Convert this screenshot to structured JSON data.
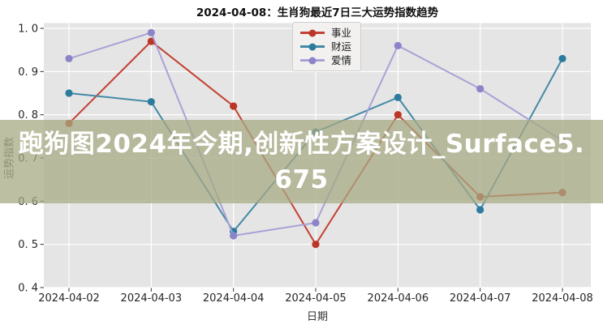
{
  "chart_data": {
    "type": "line",
    "title": "2024-04-08：生肖狗最近7日三大运势指数趋势",
    "xlabel": "日期",
    "ylabel": "运势指数",
    "categories": [
      "2024-04-02",
      "2024-04-03",
      "2024-04-04",
      "2024-04-05",
      "2024-04-06",
      "2024-04-07",
      "2024-04-08"
    ],
    "ylim": [
      0.4,
      1.0
    ],
    "ytick_values": [
      0.4,
      0.5,
      0.6,
      0.7,
      0.8,
      0.9,
      1.0
    ],
    "ytick_labels": [
      "0. 4",
      "0. 5",
      "0. 6",
      "0. 7",
      "0. 8",
      "0. 9",
      "1. 0"
    ],
    "grid": true,
    "plot_bg_color": "#e5e5e5",
    "grid_color": "#ffffff",
    "tick_color": "#333333",
    "legend_position": "upper center",
    "series": [
      {
        "name": "事业",
        "slug": "career",
        "line_color": "#c44133",
        "marker_color": "#bc3627",
        "values": [
          0.78,
          0.97,
          0.82,
          0.5,
          0.8,
          0.61,
          0.62
        ]
      },
      {
        "name": "财运",
        "slug": "wealth",
        "line_color": "#4489a6",
        "marker_color": "#2d7b9e",
        "values": [
          0.85,
          0.83,
          0.53,
          0.76,
          0.84,
          0.58,
          0.93
        ]
      },
      {
        "name": "爱情",
        "slug": "love",
        "line_color": "#a9a1d6",
        "marker_color": "#8c84c8",
        "values": [
          0.93,
          0.99,
          0.52,
          0.55,
          0.96,
          0.86,
          0.74
        ]
      }
    ]
  },
  "watermark": {
    "text": "跑狗图2024年今期,创新性方案设计_Surface5.675",
    "lines": [
      "跑狗图2024年今期,创新性方案设计_Surface5.",
      "675"
    ],
    "bg_color": "rgba(167,169,131,0.75)",
    "text_color": "#ffffff"
  }
}
